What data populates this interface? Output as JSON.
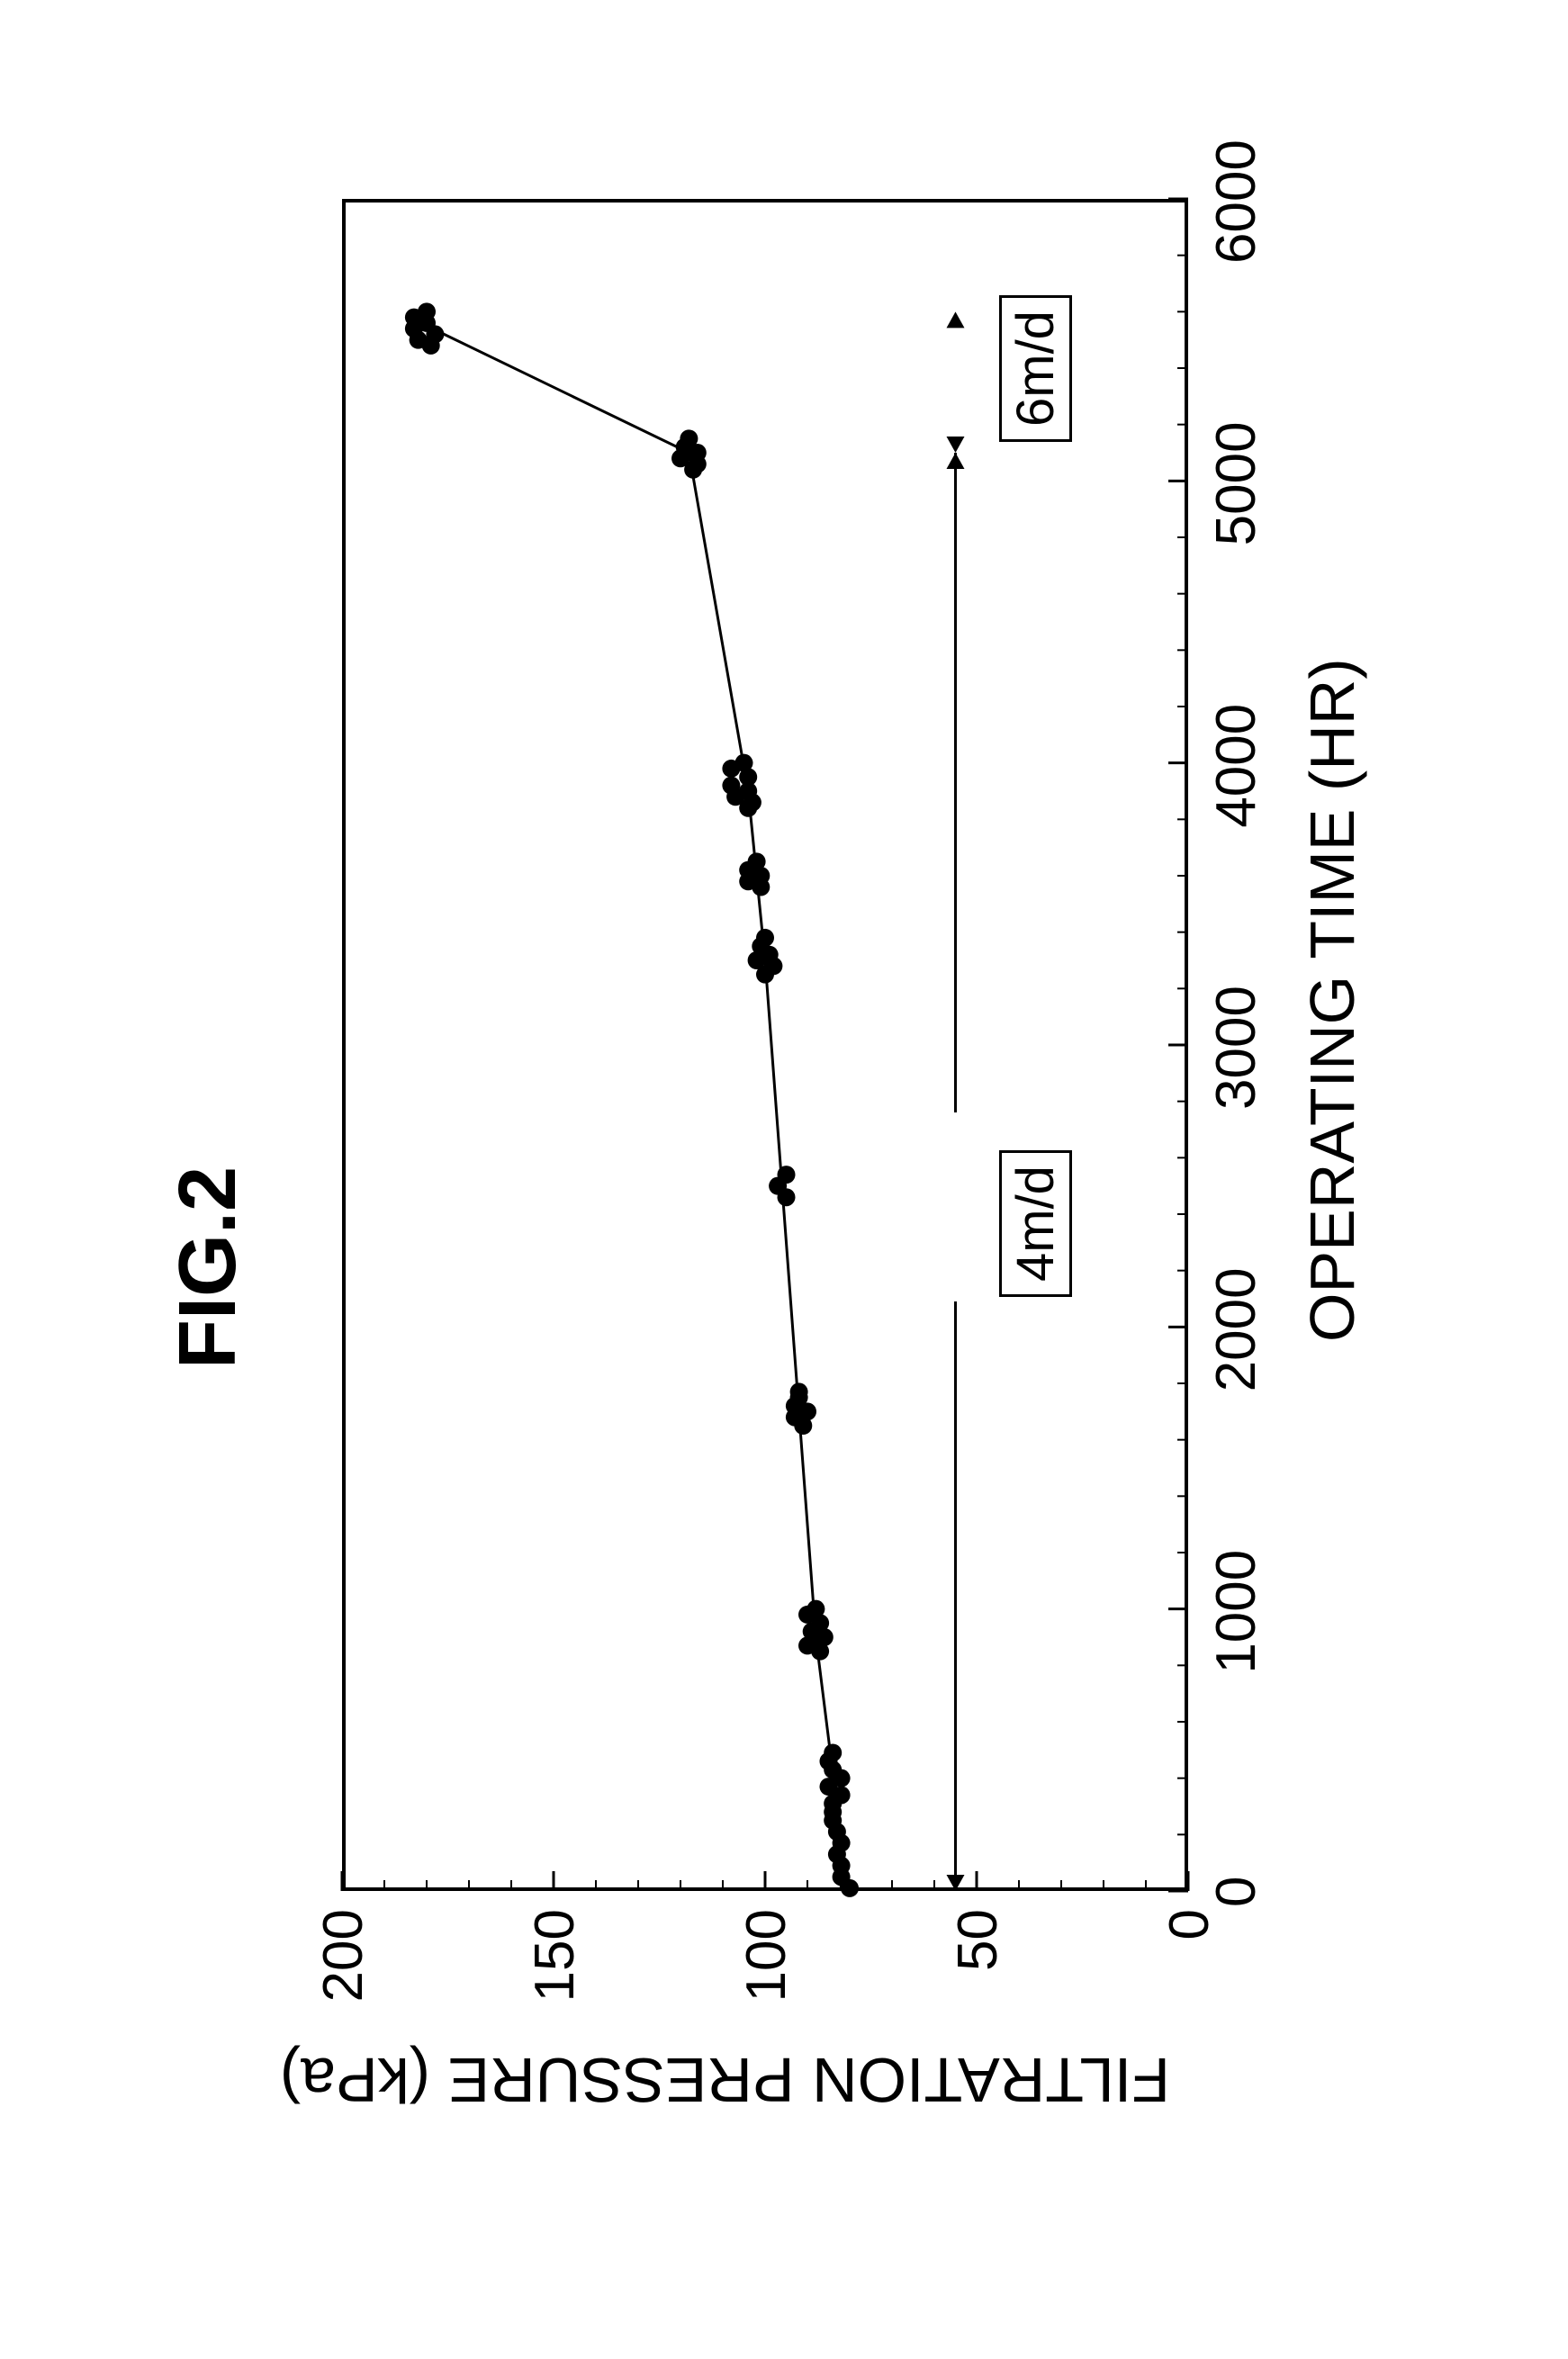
{
  "figure": {
    "title": "FIG.2",
    "title_fontsize": 90,
    "title_fontweight": "bold",
    "background_color": "#ffffff",
    "plot": {
      "type": "scatter-line",
      "frame_border_color": "#000000",
      "frame_border_width": 4,
      "x": {
        "label": "OPERATING TIME (HR)",
        "label_fontsize": 70,
        "lim": [
          0,
          6000
        ],
        "ticks": [
          0,
          1000,
          2000,
          3000,
          4000,
          5000,
          6000
        ],
        "tick_labels": [
          "0",
          "1000",
          "2000",
          "3000",
          "4000",
          "5000",
          "6000"
        ],
        "tick_fontsize": 62,
        "major_tick_len": 22,
        "minor_tick_step": 200,
        "minor_tick_len": 12
      },
      "y": {
        "label": "FILTRATION PRESSURE (kPa)",
        "label_fontsize": 70,
        "lim": [
          0,
          200
        ],
        "ticks": [
          0,
          50,
          100,
          150,
          200
        ],
        "tick_labels": [
          "0",
          "50",
          "100",
          "150",
          "200"
        ],
        "tick_fontsize": 62,
        "major_tick_len": 22,
        "minor_tick_step": 10,
        "minor_tick_len": 12
      },
      "line": {
        "color": "#000000",
        "width": 3,
        "points": [
          [
            0,
            82
          ],
          [
            300,
            83
          ],
          [
            900,
            88
          ],
          [
            1700,
            92
          ],
          [
            2500,
            96
          ],
          [
            3300,
            100
          ],
          [
            3600,
            102
          ],
          [
            3900,
            104
          ],
          [
            5100,
            118
          ],
          [
            5550,
            180
          ]
        ]
      },
      "scatter": {
        "marker_radius": 10,
        "marker_color": "#000000",
        "points": [
          [
            10,
            80
          ],
          [
            50,
            82
          ],
          [
            90,
            82
          ],
          [
            130,
            83
          ],
          [
            170,
            82
          ],
          [
            210,
            83
          ],
          [
            250,
            84
          ],
          [
            280,
            84
          ],
          [
            310,
            84
          ],
          [
            340,
            82
          ],
          [
            370,
            85
          ],
          [
            400,
            82
          ],
          [
            430,
            84
          ],
          [
            460,
            85
          ],
          [
            490,
            84
          ],
          [
            850,
            87
          ],
          [
            870,
            90
          ],
          [
            885,
            88
          ],
          [
            900,
            86
          ],
          [
            920,
            89
          ],
          [
            950,
            87
          ],
          [
            980,
            90
          ],
          [
            1000,
            88
          ],
          [
            1650,
            91
          ],
          [
            1680,
            93
          ],
          [
            1700,
            90
          ],
          [
            1720,
            93
          ],
          [
            1750,
            92
          ],
          [
            1770,
            92
          ],
          [
            2460,
            95
          ],
          [
            2500,
            97
          ],
          [
            2540,
            95
          ],
          [
            3250,
            100
          ],
          [
            3280,
            98
          ],
          [
            3300,
            102
          ],
          [
            3320,
            99
          ],
          [
            3350,
            101
          ],
          [
            3380,
            100
          ],
          [
            3560,
            101
          ],
          [
            3580,
            104
          ],
          [
            3600,
            101
          ],
          [
            3620,
            104
          ],
          [
            3650,
            102
          ],
          [
            3840,
            104
          ],
          [
            3860,
            103
          ],
          [
            3880,
            107
          ],
          [
            3900,
            104
          ],
          [
            3920,
            108
          ],
          [
            3950,
            104
          ],
          [
            3980,
            108
          ],
          [
            4000,
            105
          ],
          [
            5040,
            117
          ],
          [
            5060,
            116
          ],
          [
            5080,
            120
          ],
          [
            5100,
            116
          ],
          [
            5120,
            119
          ],
          [
            5150,
            118
          ],
          [
            5480,
            179
          ],
          [
            5500,
            182
          ],
          [
            5520,
            178
          ],
          [
            5540,
            183
          ],
          [
            5560,
            180
          ],
          [
            5580,
            183
          ],
          [
            5600,
            180
          ]
        ]
      },
      "annotations": [
        {
          "id": "rate-4",
          "label": "4m/d",
          "box_border": "#000000",
          "fontsize": 58,
          "range_y_value": 55,
          "range_x_start": 0,
          "range_x_end": 5100
        },
        {
          "id": "rate-6",
          "label": "6m/d",
          "box_border": "#000000",
          "fontsize": 58,
          "range_y_value": 55,
          "range_x_start": 5100,
          "range_x_end": 5600
        }
      ],
      "arrow_line_width": 3,
      "arrow_color": "#000000"
    }
  }
}
